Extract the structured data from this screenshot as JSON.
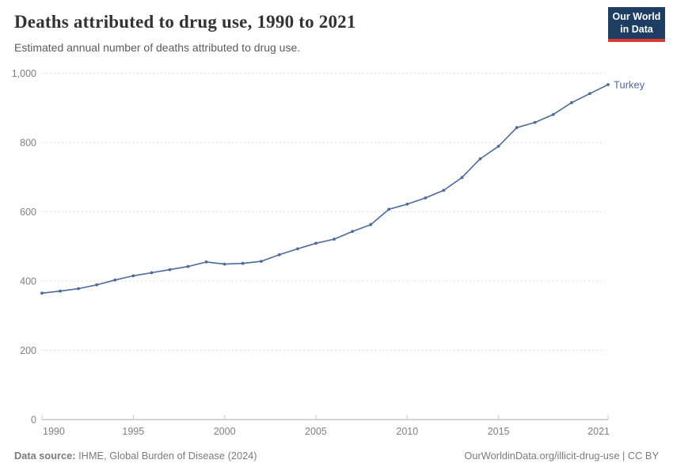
{
  "header": {
    "title": "Deaths attributed to drug use, 1990 to 2021",
    "subtitle": "Estimated annual number of deaths attributed to drug use.",
    "logo": {
      "line1": "Our World",
      "line2": "in Data",
      "bg_color": "#1d3d63",
      "accent_color": "#d93a34"
    }
  },
  "chart_data": {
    "type": "line",
    "title": "Deaths attributed to drug use, 1990 to 2021",
    "xlabel": "",
    "ylabel": "",
    "xlim": [
      1990,
      2021
    ],
    "ylim": [
      0,
      1000
    ],
    "grid": "horizontal-dashed",
    "legend_position": "end-of-line-label",
    "y_ticks": [
      0,
      200,
      400,
      600,
      800,
      1000
    ],
    "y_tick_labels": [
      "0",
      "200",
      "400",
      "600",
      "800",
      "1,000"
    ],
    "x_ticks": [
      1990,
      1995,
      2000,
      2005,
      2010,
      2015,
      2021
    ],
    "x_tick_labels": [
      "1990",
      "1995",
      "2000",
      "2005",
      "2010",
      "2015",
      "2021"
    ],
    "series": [
      {
        "name": "Turkey",
        "color": "#4C6A9C",
        "x": [
          1990,
          1991,
          1992,
          1993,
          1994,
          1995,
          1996,
          1997,
          1998,
          1999,
          2000,
          2001,
          2002,
          2003,
          2004,
          2005,
          2006,
          2007,
          2008,
          2009,
          2010,
          2011,
          2012,
          2013,
          2014,
          2015,
          2016,
          2017,
          2018,
          2019,
          2020,
          2021
        ],
        "values": [
          365,
          371,
          378,
          389,
          403,
          415,
          424,
          433,
          442,
          455,
          449,
          451,
          457,
          476,
          493,
          509,
          521,
          543,
          563,
          607,
          622,
          640,
          662,
          699,
          753,
          789,
          843,
          858,
          881,
          915,
          941,
          967
        ]
      }
    ]
  },
  "footer": {
    "source_label": "Data source:",
    "source_text": " IHME, Global Burden of Disease (2024)",
    "credit": "OurWorldinData.org/illicit-drug-use | CC BY"
  }
}
